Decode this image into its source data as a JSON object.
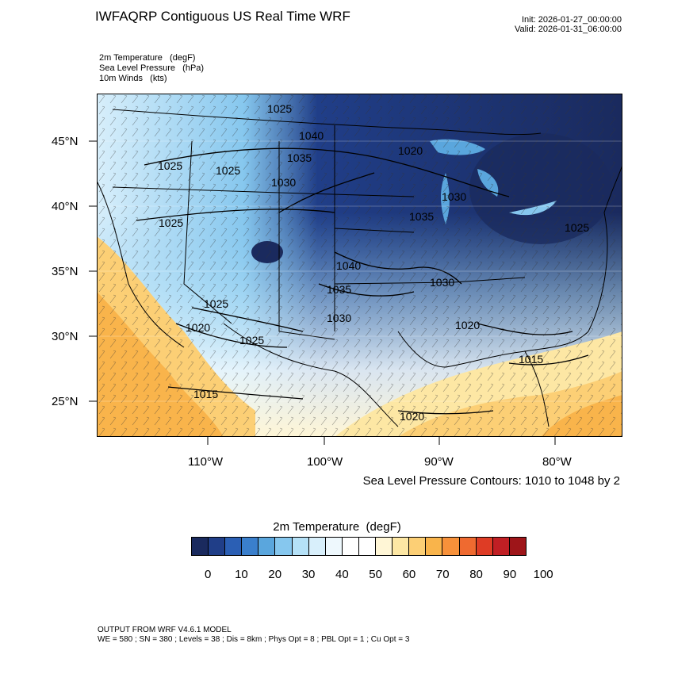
{
  "header": {
    "title": "IWFAQRP Contiguous US Real Time WRF",
    "init": "Init: 2026-01-27_00:00:00",
    "valid": "Valid: 2026-01-31_06:00:00"
  },
  "variables": [
    "2m Temperature   (degF)",
    "Sea Level Pressure   (hPa)",
    "10m Winds   (kts)"
  ],
  "map": {
    "lat_labels": [
      "45°N",
      "40°N",
      "35°N",
      "30°N",
      "25°N"
    ],
    "lon_labels": [
      "110°W",
      "100°W",
      "90°W",
      "80°W"
    ],
    "isobar_labels": [
      "1025",
      "1040",
      "1025",
      "1025",
      "1035",
      "1030",
      "1020",
      "1035",
      "1030",
      "1025",
      "1025",
      "1040",
      "1035",
      "1030",
      "1025",
      "1030",
      "1020",
      "1020",
      "1025",
      "1015",
      "1015",
      "1020"
    ],
    "contour_caption": "Sea Level Pressure Contours: 1010 to 1048 by 2"
  },
  "colorbar": {
    "title": "2m Temperature  (degF)",
    "colors": [
      "#1a2a5e",
      "#203e88",
      "#2b5fb4",
      "#3a7fcc",
      "#5aa6dd",
      "#86c7ee",
      "#b5e1f7",
      "#d8effb",
      "#eef8fd",
      "#ffffff",
      "#ffffff",
      "#fff6d6",
      "#fde7a4",
      "#fccf75",
      "#f9b44b",
      "#f7913a",
      "#ef6a30",
      "#de3c25",
      "#c11f24",
      "#9e1519"
    ],
    "labels": [
      "0",
      "10",
      "20",
      "30",
      "40",
      "50",
      "60",
      "70",
      "80",
      "90",
      "100"
    ]
  },
  "footer": {
    "line1": "OUTPUT FROM WRF V4.6.1 MODEL",
    "line2": "WE = 580 ; SN = 380 ; Levels = 38 ; Dis = 8km ; Phys Opt = 8 ; PBL Opt = 1 ; Cu Opt = 3"
  }
}
